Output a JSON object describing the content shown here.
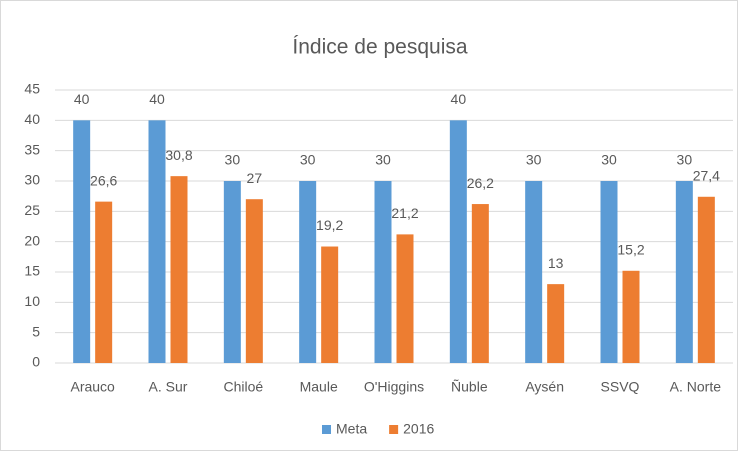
{
  "chart_data": {
    "type": "bar",
    "title": "Índice de pesquisa",
    "categories": [
      "Arauco",
      "A. Sur",
      "Chiloé",
      "Maule",
      "O'Higgins",
      "Ñuble",
      "Aysén",
      "SSVQ",
      "A. Norte"
    ],
    "series": [
      {
        "name": "Meta",
        "color": "#5b9bd5",
        "values": [
          40,
          40,
          30,
          30,
          30,
          40,
          30,
          30,
          30
        ]
      },
      {
        "name": "2016",
        "color": "#ed7d31",
        "values": [
          26.6,
          30.8,
          27,
          19.2,
          21.2,
          26.2,
          13,
          15.2,
          27.4
        ],
        "value_labels": [
          "26,6",
          "30,8",
          "27",
          "19,2",
          "21,2",
          "26,2",
          "13",
          "15,2",
          "27,4"
        ]
      }
    ],
    "ylim": [
      0,
      45
    ],
    "yticks": [
      0,
      5,
      10,
      15,
      20,
      25,
      30,
      35,
      40,
      45
    ],
    "grid": true,
    "legend": "bottom"
  }
}
